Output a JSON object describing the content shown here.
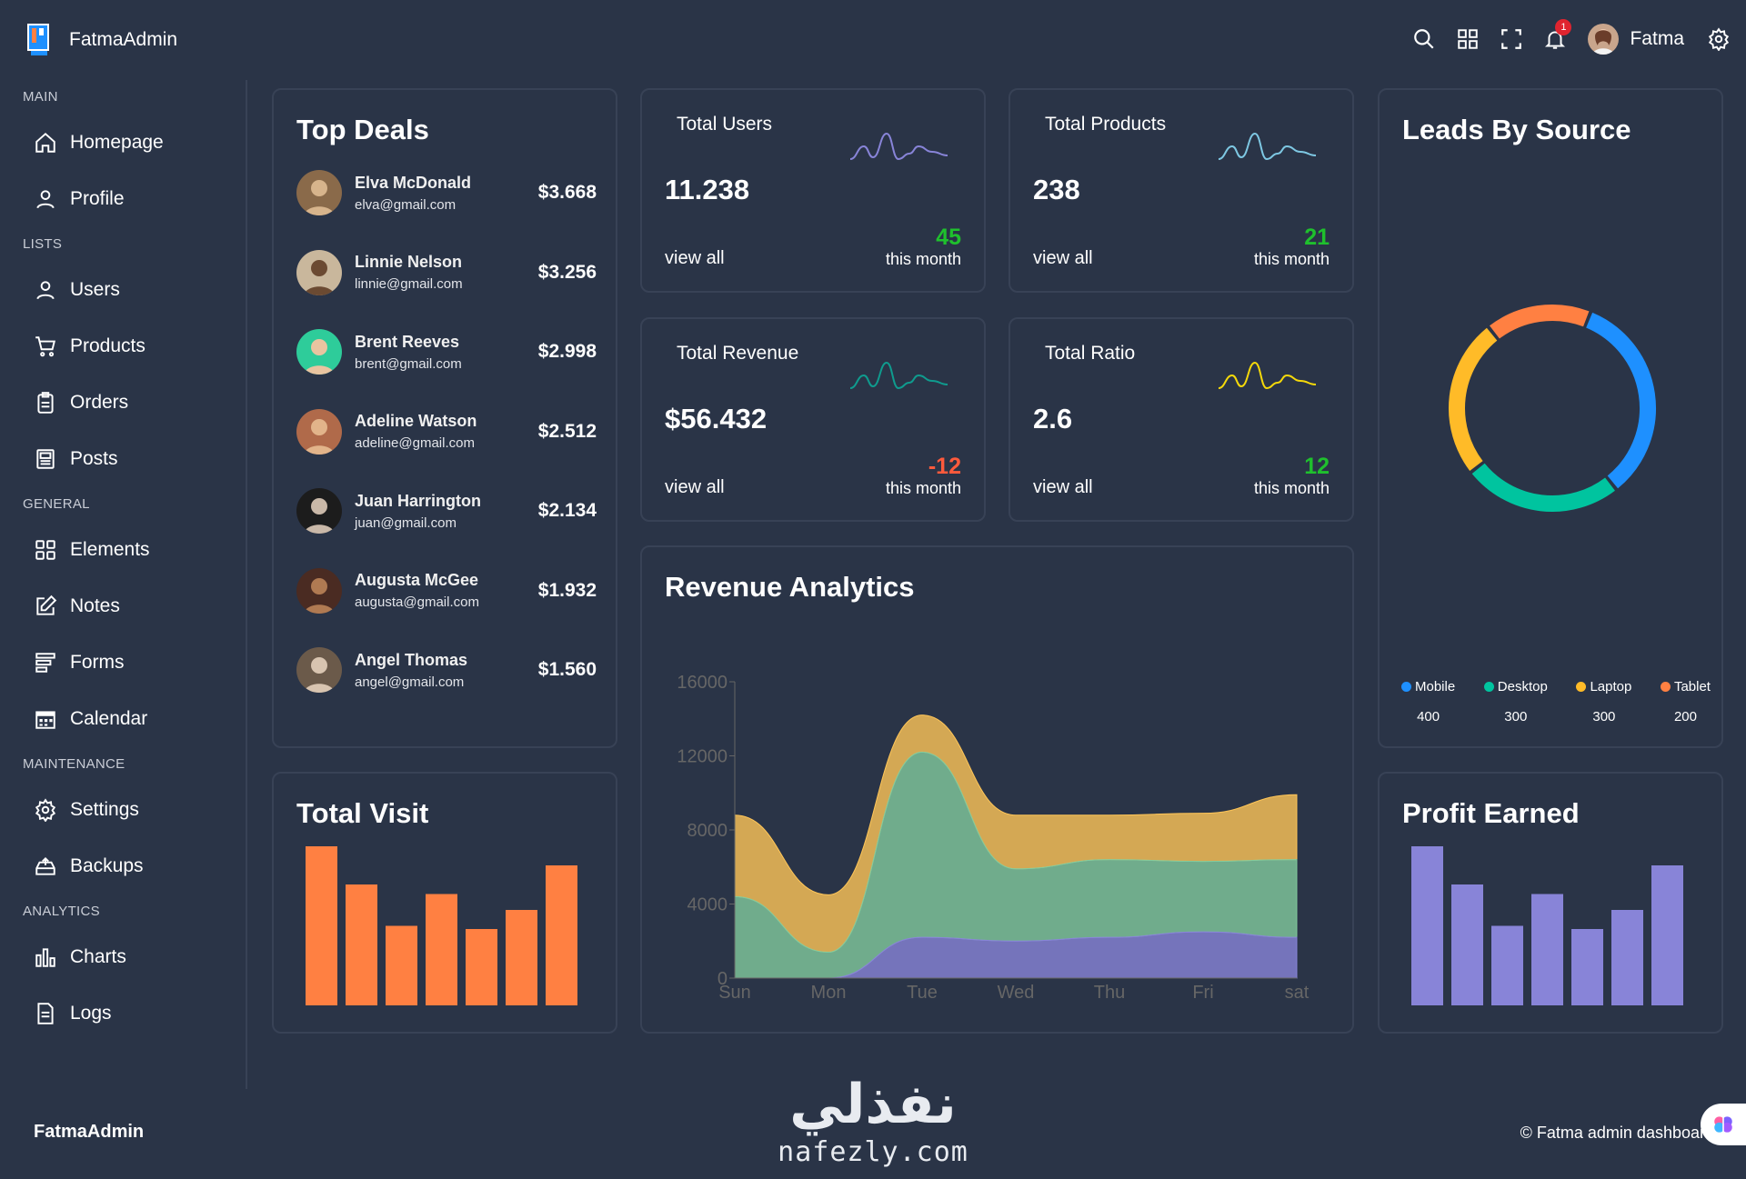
{
  "app": {
    "brand": "FatmaAdmin",
    "user_name": "Fatma",
    "notification_count": "1",
    "icons": [
      "search-icon",
      "apps-icon",
      "fullscreen-icon",
      "bell-icon",
      "settings-icon"
    ]
  },
  "sidebar": {
    "sections": [
      {
        "title": "MAIN",
        "items": [
          {
            "label": "Homepage",
            "icon": "home-icon"
          },
          {
            "label": "Profile",
            "icon": "profile-icon"
          }
        ]
      },
      {
        "title": "LISTS",
        "items": [
          {
            "label": "Users",
            "icon": "users-icon"
          },
          {
            "label": "Products",
            "icon": "cart-icon"
          },
          {
            "label": "Orders",
            "icon": "clipboard-icon"
          },
          {
            "label": "Posts",
            "icon": "posts-icon"
          }
        ]
      },
      {
        "title": "GENERAL",
        "items": [
          {
            "label": "Elements",
            "icon": "elements-icon"
          },
          {
            "label": "Notes",
            "icon": "notes-icon"
          },
          {
            "label": "Forms",
            "icon": "forms-icon"
          },
          {
            "label": "Calendar",
            "icon": "calendar-icon"
          }
        ]
      },
      {
        "title": "MAINTENANCE",
        "items": [
          {
            "label": "Settings",
            "icon": "gear-icon"
          },
          {
            "label": "Backups",
            "icon": "backup-icon"
          }
        ]
      },
      {
        "title": "ANALYTICS",
        "items": [
          {
            "label": "Charts",
            "icon": "chart-icon"
          },
          {
            "label": "Logs",
            "icon": "logs-icon"
          }
        ]
      }
    ]
  },
  "top_deals": {
    "title": "Top Deals",
    "deals": [
      {
        "name": "Elva McDonald",
        "email": "elva@gmail.com",
        "amount": "$3.668"
      },
      {
        "name": "Linnie Nelson",
        "email": "linnie@gmail.com",
        "amount": "$3.256"
      },
      {
        "name": "Brent Reeves",
        "email": "brent@gmail.com",
        "amount": "$2.998"
      },
      {
        "name": "Adeline Watson",
        "email": "adeline@gmail.com",
        "amount": "$2.512"
      },
      {
        "name": "Juan Harrington",
        "email": "juan@gmail.com",
        "amount": "$2.134"
      },
      {
        "name": "Augusta McGee",
        "email": "augusta@gmail.com",
        "amount": "$1.932"
      },
      {
        "name": "Angel Thomas",
        "email": "angel@gmail.com",
        "amount": "$1.560"
      }
    ]
  },
  "stats": {
    "users": {
      "label": "Total Users",
      "value": "11.238",
      "view": "view all",
      "change": "45",
      "period": "this month",
      "color": "#8884d8",
      "change_color": "#1fc02d"
    },
    "products": {
      "label": "Total Products",
      "value": "238",
      "view": "view all",
      "change": "21",
      "period": "this month",
      "color": "#7ec8e3",
      "change_color": "#1fc02d"
    },
    "revenue": {
      "label": "Total Revenue",
      "value": "$56.432",
      "view": "view all",
      "change": "-12",
      "period": "this month",
      "color": "#0f9b8e",
      "change_color": "#ff5a3c"
    },
    "ratio": {
      "label": "Total Ratio",
      "value": "2.6",
      "view": "view all",
      "change": "12",
      "period": "this month",
      "color": "#f5d90a",
      "change_color": "#1fc02d"
    }
  },
  "leads": {
    "title": "Leads By Source",
    "items": [
      {
        "label": "Mobile",
        "value": "400",
        "color": "#1e90ff"
      },
      {
        "label": "Desktop",
        "value": "300",
        "color": "#00c49f"
      },
      {
        "label": "Laptop",
        "value": "300",
        "color": "#ffbb28"
      },
      {
        "label": "Tablet",
        "value": "200",
        "color": "#ff8042"
      }
    ]
  },
  "total_visit": {
    "title": "Total Visit",
    "color": "#ff8042",
    "levels": [
      1.0,
      0.76,
      0.5,
      0.7,
      0.48,
      0.6,
      0.88
    ]
  },
  "profit_earned": {
    "title": "Profit Earned",
    "color": "#8884d8",
    "levels": [
      1.0,
      0.76,
      0.5,
      0.7,
      0.48,
      0.6,
      0.88
    ]
  },
  "revenue_analytics": {
    "title": "Revenue Analytics",
    "chart_data": {
      "type": "area",
      "stacked": true,
      "categories": [
        "Sun",
        "Mon",
        "Tue",
        "Wed",
        "Thu",
        "Fri",
        "sat"
      ],
      "ylim": [
        0,
        16000
      ],
      "yticks": [
        "0",
        "4000",
        "8000",
        "12000",
        "16000"
      ],
      "series": [
        {
          "values": [
            0,
            0,
            2200,
            2000,
            2200,
            2500,
            2200
          ],
          "color": "#8884d8"
        },
        {
          "values": [
            4400,
            1400,
            10000,
            3900,
            4200,
            3800,
            4200
          ],
          "color": "#82ca9d"
        },
        {
          "values": [
            4400,
            3100,
            2000,
            2900,
            2400,
            2600,
            3500
          ],
          "color": "#ffc658"
        }
      ]
    }
  },
  "footer": {
    "brand": "FatmaAdmin",
    "copyright": "© Fatma admin dashboard",
    "watermark_ar": "نفذلي",
    "watermark_en": "nafezly.com"
  }
}
